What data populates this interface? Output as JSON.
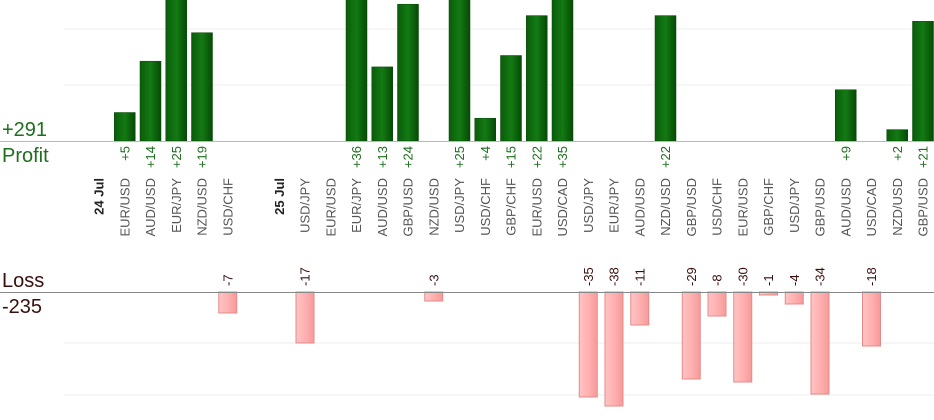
{
  "summary": {
    "profit_total": "+291",
    "profit_label": "Profit",
    "loss_label": "Loss",
    "loss_total": "-235"
  },
  "colors": {
    "profit_bar": "#0f6b0f",
    "profit_bar_dark": "#064a06",
    "profit_text": "#1e6e1e",
    "loss_bar": "#ffb3b3",
    "loss_bar_border": "#e58a8a",
    "loss_text": "#3b0e0e",
    "grid": "#ececec",
    "axis": "#888888"
  },
  "chart_data": {
    "type": "bar",
    "y_range_profit": [
      0,
      25
    ],
    "y_range_loss": [
      -35,
      0
    ],
    "grid": true,
    "columns": [
      {
        "kind": "date",
        "label": "24 Jul"
      },
      {
        "kind": "pair",
        "label": "EUR/USD",
        "value": 5
      },
      {
        "kind": "pair",
        "label": "AUD/USD",
        "value": 14
      },
      {
        "kind": "pair",
        "label": "EUR/JPY",
        "value": 25
      },
      {
        "kind": "pair",
        "label": "NZD/USD",
        "value": 19
      },
      {
        "kind": "pair",
        "label": "USD/CHF",
        "value": -7
      },
      {
        "kind": "gap"
      },
      {
        "kind": "date",
        "label": "25 Jul"
      },
      {
        "kind": "pair",
        "label": "USD/JPY",
        "value": -17
      },
      {
        "kind": "pair",
        "label": "EUR/USD",
        "value": null
      },
      {
        "kind": "pair",
        "label": "EUR/JPY",
        "value": 36
      },
      {
        "kind": "pair",
        "label": "AUD/USD",
        "value": 13
      },
      {
        "kind": "pair",
        "label": "GBP/USD",
        "value": 24
      },
      {
        "kind": "pair",
        "label": "NZD/USD",
        "value": -3
      },
      {
        "kind": "pair",
        "label": "USD/JPY",
        "value": 25
      },
      {
        "kind": "pair",
        "label": "USD/CHF",
        "value": 4
      },
      {
        "kind": "pair",
        "label": "GBP/CHF",
        "value": 15
      },
      {
        "kind": "pair",
        "label": "EUR/USD",
        "value": 22
      },
      {
        "kind": "pair",
        "label": "USD/CAD",
        "value": 35
      },
      {
        "kind": "pair",
        "label": "USD/JPY",
        "value": -35
      },
      {
        "kind": "pair",
        "label": "EUR/JPY",
        "value": -38
      },
      {
        "kind": "pair",
        "label": "AUD/USD",
        "value": -11
      },
      {
        "kind": "pair",
        "label": "NZD/USD",
        "value": 22
      },
      {
        "kind": "pair",
        "label": "GBP/USD",
        "value": -29
      },
      {
        "kind": "pair",
        "label": "USD/CHF",
        "value": -8
      },
      {
        "kind": "pair",
        "label": "EUR/USD",
        "value": -30
      },
      {
        "kind": "pair",
        "label": "GBP/CHF",
        "value": -1
      },
      {
        "kind": "pair",
        "label": "USD/JPY",
        "value": -4
      },
      {
        "kind": "pair",
        "label": "GBP/USD",
        "value": -34
      },
      {
        "kind": "pair",
        "label": "AUD/USD",
        "value": 9
      },
      {
        "kind": "pair",
        "label": "USD/CAD",
        "value": -18
      },
      {
        "kind": "pair",
        "label": "NZD/USD",
        "value": 2
      },
      {
        "kind": "pair",
        "label": "GBP/USD",
        "value": 21
      }
    ]
  }
}
